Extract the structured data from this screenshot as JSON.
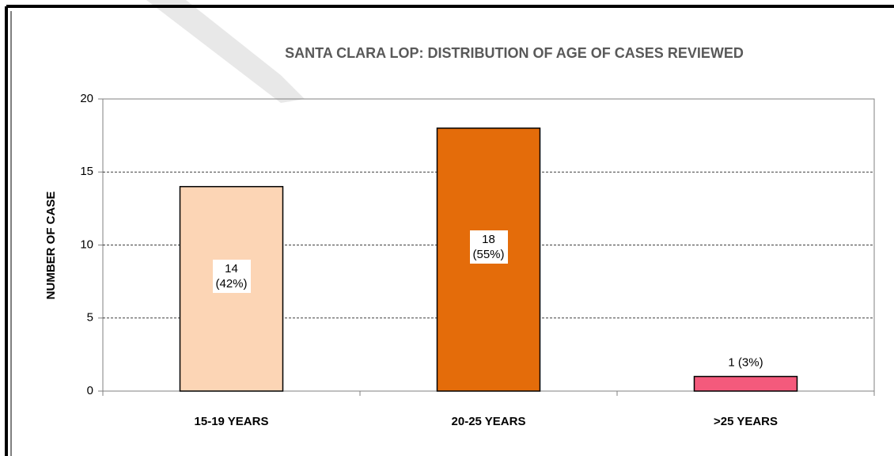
{
  "chart_data": {
    "type": "bar",
    "title": "SANTA CLARA LOP: DISTRIBUTION OF AGE OF CASES REVIEWED",
    "y_label": "NUMBER OF CASE",
    "categories": [
      "15-19 YEARS",
      "20-25 YEARS",
      ">25 YEARS"
    ],
    "values": [
      14,
      18,
      1
    ],
    "value_labels": [
      "14 (42%)",
      "18 (55%)",
      "1 (3%)"
    ],
    "colors": [
      "#fcd5b5",
      "#e46c0a",
      "#f45a7c"
    ],
    "ylim": [
      0,
      20
    ],
    "yticks": [
      0,
      5,
      10,
      15,
      20
    ],
    "grid": true
  }
}
